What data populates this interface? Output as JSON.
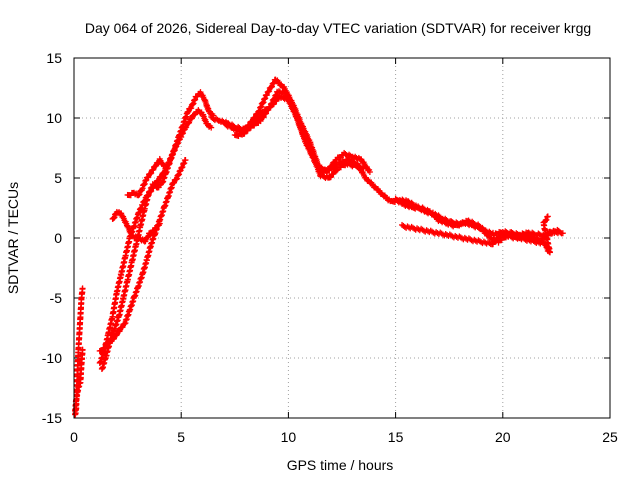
{
  "chart_data": {
    "type": "scatter",
    "title": "Day 064 of 2026, Sidereal Day-to-day VTEC variation (SDTVAR) for receiver krgg",
    "xlabel": "GPS time / hours",
    "ylabel": "SDTVAR / TECUs",
    "xlim": [
      0,
      25
    ],
    "ylim": [
      -15,
      15
    ],
    "xticks": [
      0,
      5,
      10,
      15,
      20,
      25
    ],
    "yticks": [
      -15,
      -10,
      -5,
      0,
      5,
      10,
      15
    ],
    "grid": true,
    "marker": "+",
    "color": "#ff0000",
    "series": [
      {
        "name": "t0",
        "x": [
          0.05,
          0.1,
          0.15,
          0.2,
          0.25,
          0.3,
          0.35,
          0.4
        ],
        "y": [
          -14.8,
          -14.2,
          -11.5,
          -9.5,
          -8.0,
          -6.5,
          -5.0,
          -4.2
        ]
      },
      {
        "name": "t1",
        "x": [
          0.05,
          0.1,
          0.2,
          0.3,
          0.35,
          0.4
        ],
        "y": [
          -14.5,
          -13.5,
          -12.5,
          -12.0,
          -10.5,
          -9.3
        ]
      },
      {
        "name": "t2",
        "x": [
          1.2,
          1.4,
          1.6,
          1.8,
          2.0,
          2.2,
          2.4,
          2.6,
          2.8,
          3.0,
          3.2,
          3.4,
          3.6,
          3.8,
          4.0,
          4.2,
          4.4,
          4.6,
          4.8,
          5.0,
          5.2,
          5.4,
          5.6,
          5.8,
          6.0,
          6.2,
          6.4
        ],
        "y": [
          -10.5,
          -9.5,
          -8.0,
          -6.5,
          -4.5,
          -3.0,
          -1.5,
          0.0,
          1.0,
          2.0,
          2.8,
          3.5,
          4.0,
          4.5,
          5.0,
          5.5,
          6.2,
          7.0,
          7.8,
          8.5,
          9.2,
          9.8,
          10.3,
          10.6,
          10.3,
          9.5,
          9.2
        ]
      },
      {
        "name": "t3",
        "x": [
          1.3,
          1.5,
          1.7,
          1.9,
          2.1,
          2.3,
          2.5,
          2.7,
          2.9,
          3.1,
          3.3,
          3.5,
          3.7,
          3.9,
          4.1,
          4.3,
          4.5,
          4.7,
          4.9,
          5.1,
          5.3,
          5.5,
          5.7,
          5.9,
          6.1,
          6.3,
          6.5
        ],
        "y": [
          -11.0,
          -9.8,
          -8.5,
          -7.5,
          -6.5,
          -5.0,
          -3.5,
          -2.0,
          -0.5,
          1.0,
          2.5,
          3.8,
          4.5,
          4.2,
          4.5,
          5.5,
          6.5,
          7.5,
          8.5,
          9.5,
          10.5,
          11.0,
          11.8,
          12.1,
          11.5,
          10.5,
          10.2
        ]
      },
      {
        "name": "t4",
        "x": [
          1.2,
          1.5,
          1.8,
          2.0,
          2.2,
          2.4,
          2.6,
          2.8,
          3.0,
          3.2,
          3.4,
          3.6,
          3.8,
          4.0,
          4.2,
          4.4,
          4.6,
          4.8,
          5.0,
          5.2
        ],
        "y": [
          -9.5,
          -9.0,
          -8.5,
          -8.0,
          -7.5,
          -7.0,
          -6.0,
          -5.0,
          -4.0,
          -3.0,
          -1.8,
          -0.5,
          0.5,
          1.5,
          2.5,
          3.5,
          4.5,
          5.0,
          5.8,
          6.5
        ]
      },
      {
        "name": "t5",
        "x": [
          1.8,
          2.0,
          2.2,
          2.5,
          2.7,
          3.0,
          3.3,
          3.5,
          3.8,
          4.0
        ],
        "y": [
          1.5,
          2.2,
          2.0,
          1.0,
          0.2,
          0.0,
          -0.3,
          0.3,
          0.8,
          1.2
        ]
      },
      {
        "name": "t6",
        "x": [
          2.5,
          2.8,
          3.0,
          3.2,
          3.4,
          3.6,
          3.8,
          4.0,
          4.2
        ],
        "y": [
          3.5,
          3.8,
          3.5,
          4.2,
          5.0,
          5.5,
          6.0,
          6.5,
          6.0
        ]
      },
      {
        "name": "t7",
        "x": [
          6.4,
          6.8,
          7.2,
          7.6,
          8.0,
          8.4,
          8.8,
          9.2,
          9.6,
          10.0,
          10.4,
          10.8,
          11.2,
          11.6,
          12.0,
          12.4,
          12.8,
          13.2,
          13.6,
          14.0,
          14.4,
          14.8,
          15.2,
          15.6,
          16.0,
          16.4,
          16.8,
          17.2,
          17.6,
          18.0,
          18.4,
          18.8,
          19.2,
          19.6,
          20.0,
          20.4,
          20.8,
          21.2,
          21.6,
          22.0,
          22.4,
          22.8
        ],
        "y": [
          10.0,
          9.8,
          9.5,
          9.2,
          9.0,
          9.5,
          10.5,
          11.0,
          11.8,
          11.5,
          10.0,
          8.0,
          6.5,
          5.5,
          5.8,
          6.3,
          6.5,
          6.2,
          5.0,
          4.3,
          3.6,
          3.0,
          3.2,
          3.0,
          2.6,
          2.2,
          2.0,
          1.6,
          1.3,
          1.2,
          1.4,
          1.1,
          0.6,
          0.3,
          0.5,
          0.4,
          0.3,
          0.4,
          0.3,
          0.2,
          0.5,
          0.4
        ]
      },
      {
        "name": "t8",
        "x": [
          7.0,
          7.4,
          7.8,
          8.2,
          8.6,
          9.0,
          9.4,
          9.8,
          10.2,
          10.6,
          11.0,
          11.4,
          11.8,
          12.2,
          12.6,
          13.0,
          13.4,
          13.8
        ],
        "y": [
          9.5,
          9.2,
          8.8,
          9.5,
          10.5,
          12.0,
          13.2,
          12.5,
          11.2,
          9.5,
          8.0,
          6.0,
          5.5,
          6.5,
          7.0,
          6.8,
          6.5,
          5.5
        ]
      },
      {
        "name": "t9",
        "x": [
          7.5,
          7.9,
          8.3,
          8.7,
          9.1,
          9.5,
          9.9,
          10.3,
          10.7,
          11.1,
          11.5,
          11.9,
          12.3,
          12.7,
          13.1,
          13.5
        ],
        "y": [
          8.5,
          8.7,
          9.3,
          9.8,
          10.8,
          12.2,
          12.0,
          10.5,
          8.5,
          7.0,
          5.2,
          5.0,
          5.8,
          6.2,
          6.0,
          5.8
        ]
      },
      {
        "name": "t10",
        "x": [
          15.0,
          15.4,
          15.8,
          16.2,
          16.6,
          17.0,
          17.4,
          17.8,
          18.2,
          18.6,
          19.0,
          19.4,
          19.8,
          20.2,
          20.6,
          21.0,
          21.4,
          21.8,
          22.2,
          22.6
        ],
        "y": [
          3.2,
          2.8,
          2.5,
          2.5,
          2.2,
          1.5,
          1.2,
          1.0,
          1.3,
          1.0,
          0.8,
          0.0,
          -0.3,
          0.2,
          0.0,
          0.2,
          0.0,
          -0.2,
          0.5,
          0.6
        ]
      },
      {
        "name": "t11",
        "x": [
          15.3,
          19.5,
          19.8,
          20.0,
          22.0,
          22.1,
          22.2,
          21.9,
          22.0,
          22.1
        ],
        "y": [
          1.0,
          -0.5,
          0.0,
          0.3,
          -0.5,
          -1.0,
          -1.2,
          1.2,
          1.5,
          1.8
        ]
      }
    ]
  }
}
